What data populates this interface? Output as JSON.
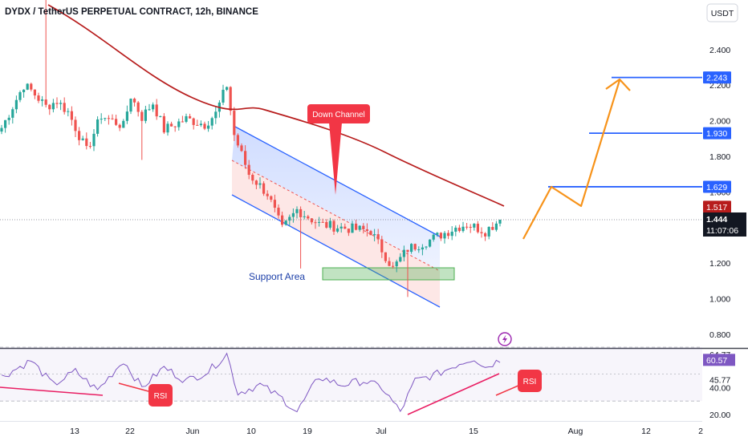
{
  "chart_data": {
    "type": "candlestick",
    "title": "DYDX / TetherUS PERPETUAL CONTRACT, 12h, BINANCE",
    "currency_label": "USDT",
    "y_ticks": [
      "2.400",
      "2.200",
      "2.000",
      "1.800",
      "1.600",
      "1.200",
      "1.000",
      "0.800"
    ],
    "x_ticks": [
      "13",
      "22",
      "Jun",
      "10",
      "19",
      "Jul",
      "15",
      "Aug",
      "12",
      "2"
    ],
    "price_labels": {
      "target_3": "2.243",
      "target_2": "1.930",
      "target_1": "1.629",
      "moving_average": "1.517",
      "last_price": "1.444",
      "countdown": "11:07:06"
    },
    "price_levels": [
      2.243,
      1.93,
      1.629
    ],
    "last_price": 1.444,
    "ma_value": 1.517,
    "annotations": {
      "channel": "Down Channel",
      "support": "Support Area",
      "rsi_left": "RSI",
      "rsi_right": "RSI"
    },
    "rsi_ticks": [
      "64.77",
      "45.77",
      "40.00",
      "20.00"
    ],
    "rsi_current": "60.57",
    "colors": {
      "up": "#26a69a",
      "down": "#ef5350",
      "ma": "#b71c1c",
      "channel": "#2962ff",
      "projection": "#f7931a",
      "support_zone": "#4caf50",
      "rsi_line": "#7e57c2",
      "annotation": "#f23645"
    }
  }
}
